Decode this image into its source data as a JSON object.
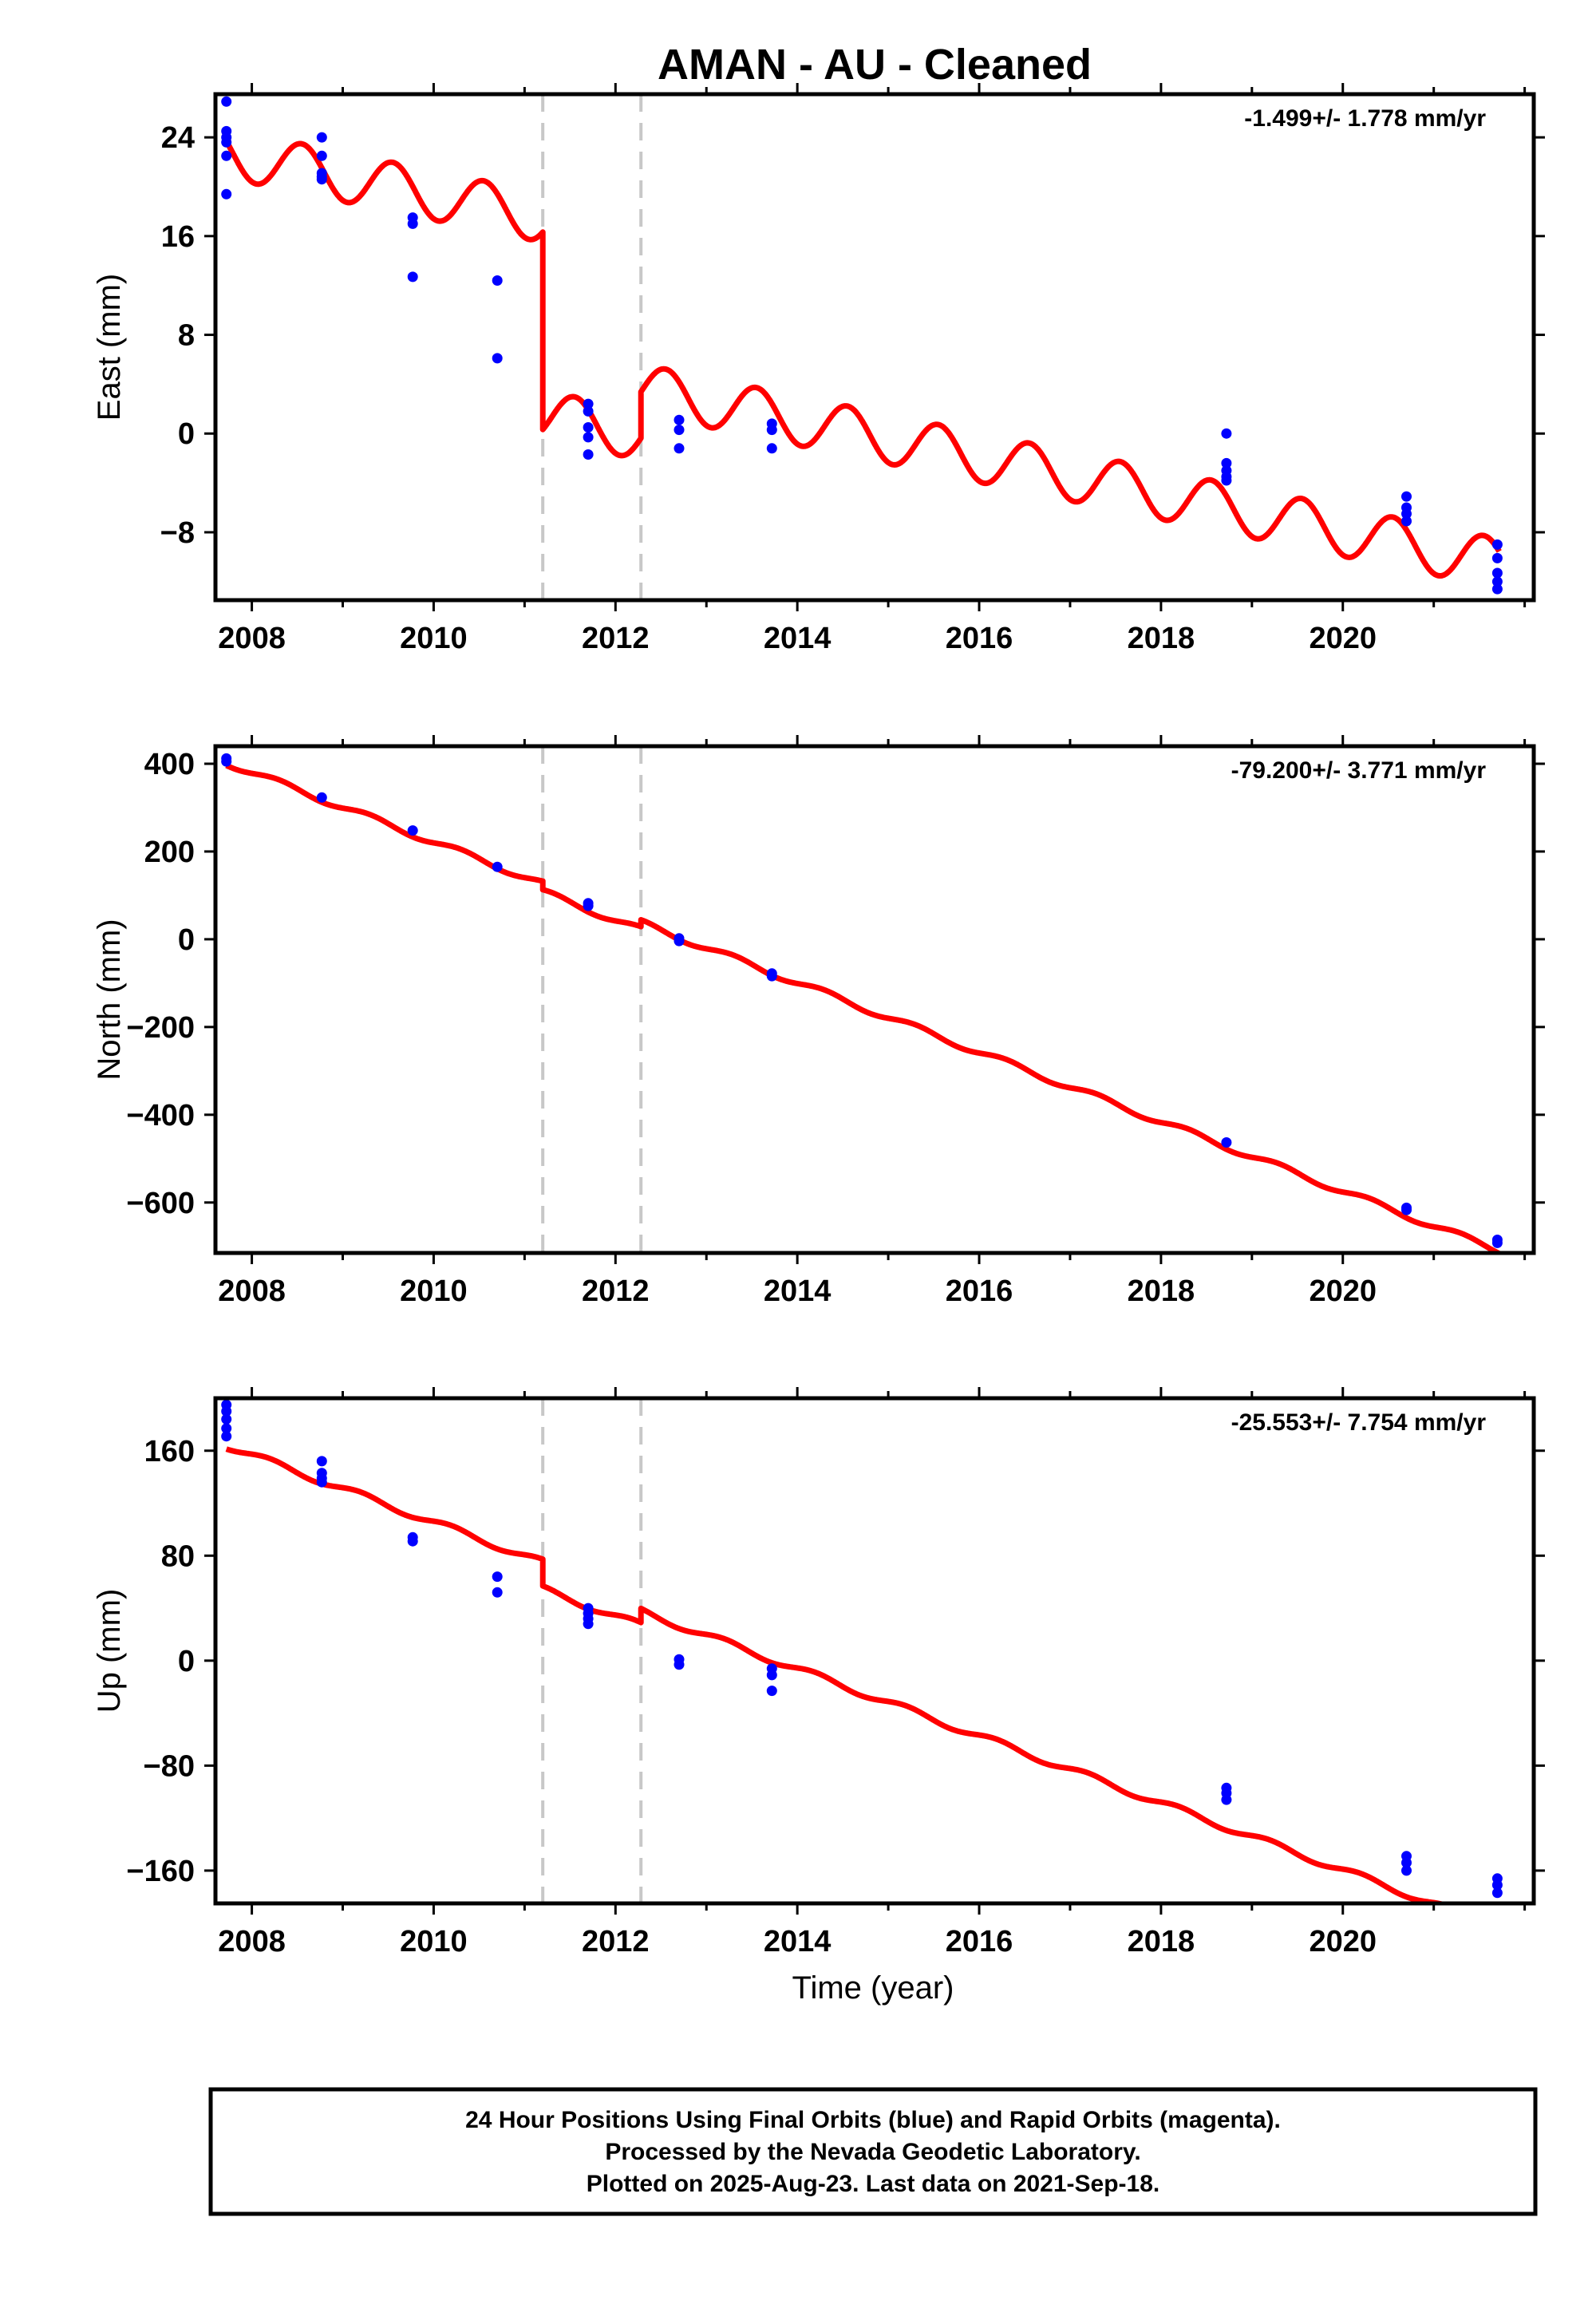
{
  "title": "AMAN  - AU - Cleaned",
  "xlabel": "Time (year)",
  "colors": {
    "model": "#ff0000",
    "data": "#0000ff",
    "breaks": "#c8c8c8"
  },
  "footer": {
    "line1": "24 Hour Positions Using Final Orbits (blue) and Rapid Orbits (magenta).",
    "line2": "Processed by the Nevada Geodetic Laboratory.",
    "line3": "Plotted on 2025-Aug-23. Last data on 2021-Sep-18."
  },
  "chart_data": [
    {
      "type": "scatter",
      "name": "east",
      "ylabel": "East (mm)",
      "rate_label": "-1.499+/- 1.778 mm/yr",
      "xlim": [
        2007.6,
        2022.1
      ],
      "ylim": [
        -13.5,
        27.5
      ],
      "xticks": [
        2008,
        2010,
        2012,
        2014,
        2016,
        2018,
        2020
      ],
      "yticks": [
        24,
        16,
        8,
        0,
        -8
      ],
      "breaks": [
        2011.2,
        2012.28
      ],
      "points": [
        [
          2007.72,
          26.9
        ],
        [
          2007.72,
          24.5
        ],
        [
          2007.72,
          24.0
        ],
        [
          2007.72,
          23.6
        ],
        [
          2007.72,
          22.5
        ],
        [
          2007.72,
          19.4
        ],
        [
          2008.77,
          24.0
        ],
        [
          2008.77,
          22.5
        ],
        [
          2008.77,
          21.1
        ],
        [
          2008.77,
          20.8
        ],
        [
          2008.77,
          20.6
        ],
        [
          2009.77,
          17.5
        ],
        [
          2009.77,
          17.0
        ],
        [
          2009.77,
          12.7
        ],
        [
          2010.7,
          12.4
        ],
        [
          2010.7,
          6.1
        ],
        [
          2011.7,
          2.4
        ],
        [
          2011.7,
          1.8
        ],
        [
          2011.7,
          0.5
        ],
        [
          2011.7,
          -0.3
        ],
        [
          2011.7,
          -1.7
        ],
        [
          2012.7,
          1.1
        ],
        [
          2012.7,
          0.3
        ],
        [
          2012.7,
          -1.2
        ],
        [
          2013.72,
          0.8
        ],
        [
          2013.72,
          0.3
        ],
        [
          2013.72,
          -1.2
        ],
        [
          2018.72,
          0.0
        ],
        [
          2018.72,
          -2.4
        ],
        [
          2018.72,
          -3.0
        ],
        [
          2018.72,
          -3.5
        ],
        [
          2018.72,
          -3.8
        ],
        [
          2020.7,
          -5.1
        ],
        [
          2020.7,
          -6.0
        ],
        [
          2020.7,
          -6.5
        ],
        [
          2020.7,
          -7.1
        ],
        [
          2021.7,
          -9.0
        ],
        [
          2021.7,
          -10.1
        ],
        [
          2021.7,
          -11.3
        ],
        [
          2021.7,
          -12.0
        ],
        [
          2021.7,
          -12.6
        ]
      ],
      "model": {
        "segments": [
          {
            "start": 2007.72,
            "end": 2011.2,
            "offset": 22.3,
            "slope": -1.499,
            "ref": 2008.0
          },
          {
            "start": 2011.2,
            "end": 2012.28,
            "offset": 0.3,
            "slope": -1.499,
            "ref": 2012.0
          },
          {
            "start": 2012.28,
            "end": 2021.72,
            "offset": 3.3,
            "slope": -1.499,
            "ref": 2012.5
          }
        ],
        "annual_amplitude": 2.0,
        "annual_phase": 0.55
      }
    },
    {
      "type": "scatter",
      "name": "north",
      "ylabel": "North (mm)",
      "rate_label": "-79.200+/- 3.771 mm/yr",
      "xlim": [
        2007.6,
        2022.1
      ],
      "ylim": [
        -715,
        440
      ],
      "xticks": [
        2008,
        2010,
        2012,
        2014,
        2016,
        2018,
        2020
      ],
      "yticks": [
        400,
        200,
        0,
        -200,
        -400,
        -600
      ],
      "breaks": [
        2011.2,
        2012.28
      ],
      "points": [
        [
          2007.72,
          412
        ],
        [
          2007.72,
          405
        ],
        [
          2008.77,
          323
        ],
        [
          2009.77,
          248
        ],
        [
          2010.7,
          165
        ],
        [
          2011.7,
          82
        ],
        [
          2011.7,
          76
        ],
        [
          2012.7,
          2
        ],
        [
          2012.7,
          -4
        ],
        [
          2013.72,
          -78
        ],
        [
          2013.72,
          -84
        ],
        [
          2018.72,
          -463
        ],
        [
          2020.7,
          -612
        ],
        [
          2020.7,
          -617
        ],
        [
          2021.7,
          -685
        ],
        [
          2021.7,
          -692
        ]
      ],
      "model": {
        "segments": [
          {
            "start": 2007.72,
            "end": 2011.2,
            "offset": 400,
            "slope": -79.2,
            "ref": 2007.75
          },
          {
            "start": 2011.2,
            "end": 2012.28,
            "offset": 44,
            "slope": -79.2,
            "ref": 2012.0
          },
          {
            "start": 2012.28,
            "end": 2021.72,
            "offset": 20,
            "slope": -79.2,
            "ref": 2012.5
          }
        ],
        "annual_amplitude": 7.0,
        "annual_phase": 0.3
      }
    },
    {
      "type": "scatter",
      "name": "up",
      "ylabel": "Up (mm)",
      "rate_label": "-25.553+/- 7.754 mm/yr",
      "xlim": [
        2007.6,
        2022.1
      ],
      "ylim": [
        -185,
        200
      ],
      "xticks": [
        2008,
        2010,
        2012,
        2014,
        2016,
        2018,
        2020
      ],
      "yticks": [
        160,
        80,
        0,
        -80,
        -160
      ],
      "breaks": [
        2011.2,
        2012.28
      ],
      "points": [
        [
          2007.72,
          195
        ],
        [
          2007.72,
          190
        ],
        [
          2007.72,
          184
        ],
        [
          2007.72,
          177
        ],
        [
          2007.72,
          171
        ],
        [
          2008.77,
          152
        ],
        [
          2008.77,
          143
        ],
        [
          2008.77,
          139
        ],
        [
          2008.77,
          136
        ],
        [
          2009.77,
          94
        ],
        [
          2009.77,
          91
        ],
        [
          2010.7,
          64
        ],
        [
          2010.7,
          52
        ],
        [
          2011.7,
          40
        ],
        [
          2011.7,
          36
        ],
        [
          2011.7,
          32
        ],
        [
          2011.7,
          28
        ],
        [
          2012.7,
          1
        ],
        [
          2012.7,
          -3
        ],
        [
          2013.72,
          -6
        ],
        [
          2013.72,
          -11
        ],
        [
          2013.72,
          -23
        ],
        [
          2018.72,
          -97
        ],
        [
          2018.72,
          -101
        ],
        [
          2018.72,
          -106
        ],
        [
          2020.7,
          -149
        ],
        [
          2020.7,
          -154
        ],
        [
          2020.7,
          -160
        ],
        [
          2021.7,
          -166
        ],
        [
          2021.7,
          -171
        ],
        [
          2021.7,
          -177
        ]
      ],
      "model": {
        "segments": [
          {
            "start": 2007.72,
            "end": 2011.2,
            "offset": 163,
            "slope": -25.553,
            "ref": 2007.75
          },
          {
            "start": 2011.2,
            "end": 2012.28,
            "offset": 34,
            "slope": -25.553,
            "ref": 2012.0
          },
          {
            "start": 2012.28,
            "end": 2021.72,
            "offset": 32,
            "slope": -25.553,
            "ref": 2012.5
          }
        ],
        "annual_amplitude": 2.5,
        "annual_phase": 0.2
      }
    }
  ]
}
